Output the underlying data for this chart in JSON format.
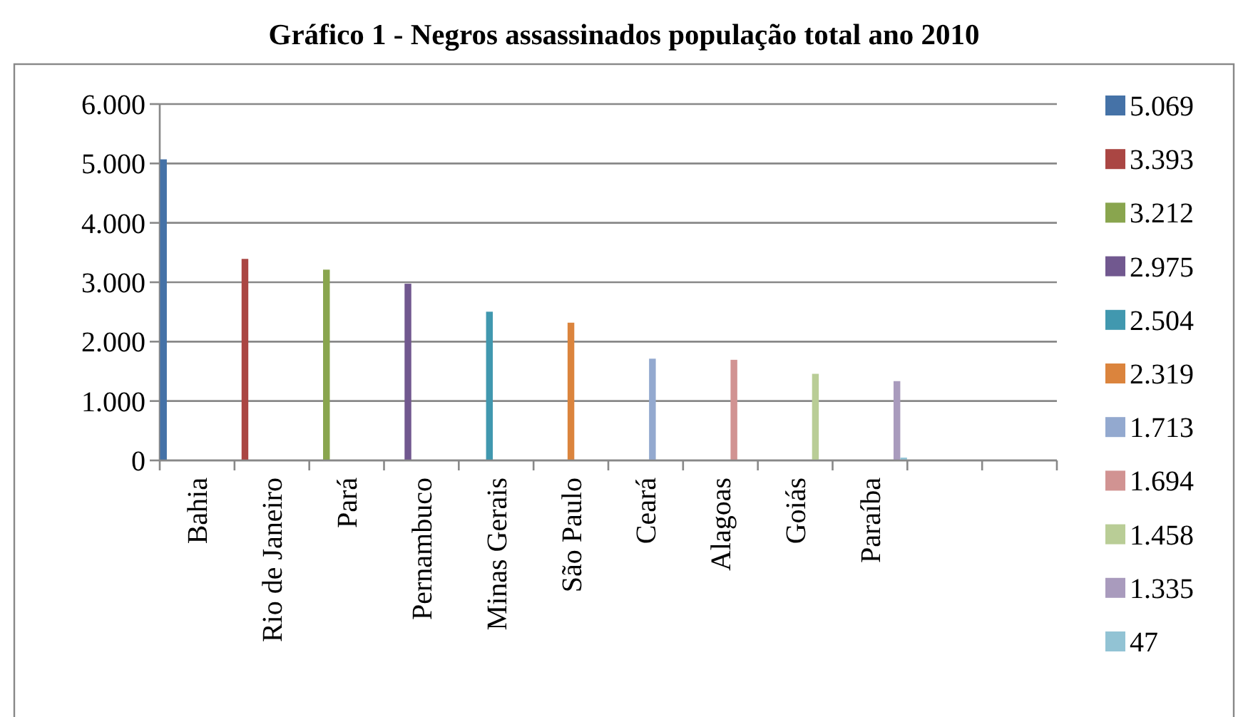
{
  "chart_data": {
    "type": "bar",
    "title": "Gráfico 1 - Negros assassinados população total ano 2010",
    "categories": [
      "Bahia",
      "Rio de Janeiro",
      "Pará",
      "Pernambuco",
      "Minas Gerais",
      "São Paulo",
      "Ceará",
      "Alagoas",
      "Goiás",
      "Paraíba",
      null,
      null
    ],
    "series": [
      {
        "name": "5.069",
        "color": "#4572a7",
        "values": [
          5069,
          null,
          null,
          null,
          null,
          null,
          null,
          null,
          null,
          null,
          null,
          null
        ]
      },
      {
        "name": "3.393",
        "color": "#aa4643",
        "values": [
          null,
          3393,
          null,
          null,
          null,
          null,
          null,
          null,
          null,
          null,
          null,
          null
        ]
      },
      {
        "name": "3.212",
        "color": "#89a54e",
        "values": [
          null,
          null,
          3212,
          null,
          null,
          null,
          null,
          null,
          null,
          null,
          null,
          null
        ]
      },
      {
        "name": "2.975",
        "color": "#71588f",
        "values": [
          null,
          null,
          null,
          2975,
          null,
          null,
          null,
          null,
          null,
          null,
          null,
          null
        ]
      },
      {
        "name": "2.504",
        "color": "#4198af",
        "values": [
          null,
          null,
          null,
          null,
          2504,
          null,
          null,
          null,
          null,
          null,
          null,
          null
        ]
      },
      {
        "name": "2.319",
        "color": "#db843d",
        "values": [
          null,
          null,
          null,
          null,
          null,
          2319,
          null,
          null,
          null,
          null,
          null,
          null
        ]
      },
      {
        "name": "1.713",
        "color": "#93a9cf",
        "values": [
          null,
          null,
          null,
          null,
          null,
          null,
          1713,
          null,
          null,
          null,
          null,
          null
        ]
      },
      {
        "name": "1.694",
        "color": "#d19392",
        "values": [
          null,
          null,
          null,
          null,
          null,
          null,
          null,
          1694,
          null,
          null,
          null,
          null
        ]
      },
      {
        "name": "1.458",
        "color": "#b9cd96",
        "values": [
          null,
          null,
          null,
          null,
          null,
          null,
          null,
          null,
          1458,
          null,
          null,
          null
        ]
      },
      {
        "name": "1.335",
        "color": "#a99bbd",
        "values": [
          null,
          null,
          null,
          null,
          null,
          null,
          null,
          null,
          null,
          1335,
          null,
          null
        ]
      },
      {
        "name": "47",
        "color": "#92c3d4",
        "values": [
          null,
          null,
          null,
          null,
          null,
          null,
          null,
          null,
          null,
          47,
          null,
          null
        ]
      }
    ],
    "ylim": [
      0,
      6000
    ],
    "yticks": [
      {
        "value": 0,
        "label": "0"
      },
      {
        "value": 1000,
        "label": "1.000"
      },
      {
        "value": 2000,
        "label": "2.000"
      },
      {
        "value": 3000,
        "label": "3.000"
      },
      {
        "value": 4000,
        "label": "4.000"
      },
      {
        "value": 5000,
        "label": "5.000"
      },
      {
        "value": 6000,
        "label": "6.000"
      }
    ],
    "grid": "y",
    "legend": "right"
  }
}
